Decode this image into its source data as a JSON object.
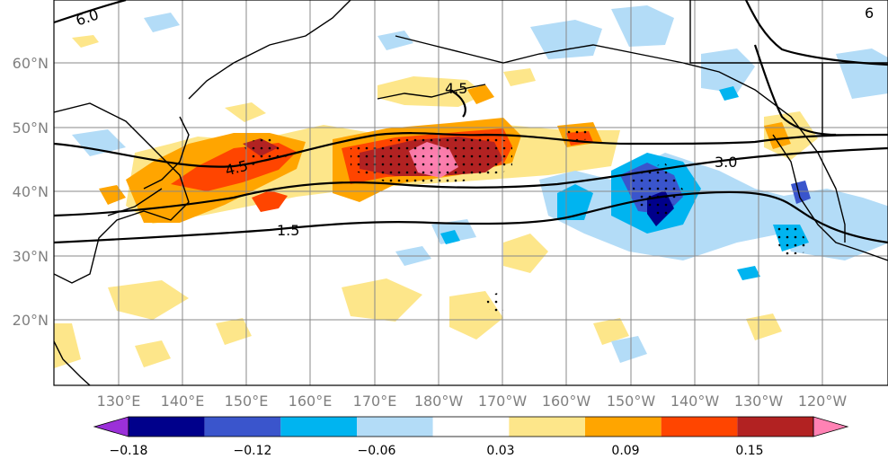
{
  "map": {
    "lat_ticks": [
      "60°N",
      "50°N",
      "40°N",
      "30°N",
      "20°N"
    ],
    "lon_ticks": [
      "130°E",
      "140°E",
      "150°E",
      "160°E",
      "170°E",
      "180°W",
      "170°W",
      "160°W",
      "150°W",
      "140°W",
      "130°W",
      "120°W"
    ],
    "contour_labels": [
      "6.0",
      "4.5",
      "4.5",
      "1.5",
      "3.0",
      "6"
    ],
    "colors": {
      "background": "#ffffff",
      "gridline": "#888888",
      "coast": "#000000",
      "contour": "#000000"
    }
  },
  "colorbar": {
    "tick_labels": [
      "−0.18",
      "−0.12",
      "−0.06",
      "0.03",
      "0.09",
      "0.15"
    ],
    "bins": [
      "#9b30d9",
      "#00008b",
      "#3a55cc",
      "#00b4f0",
      "#b3dcf7",
      "#ffffff",
      "#fde68a",
      "#ffa500",
      "#ff4500",
      "#b22222",
      "#ff82b4"
    ]
  }
}
